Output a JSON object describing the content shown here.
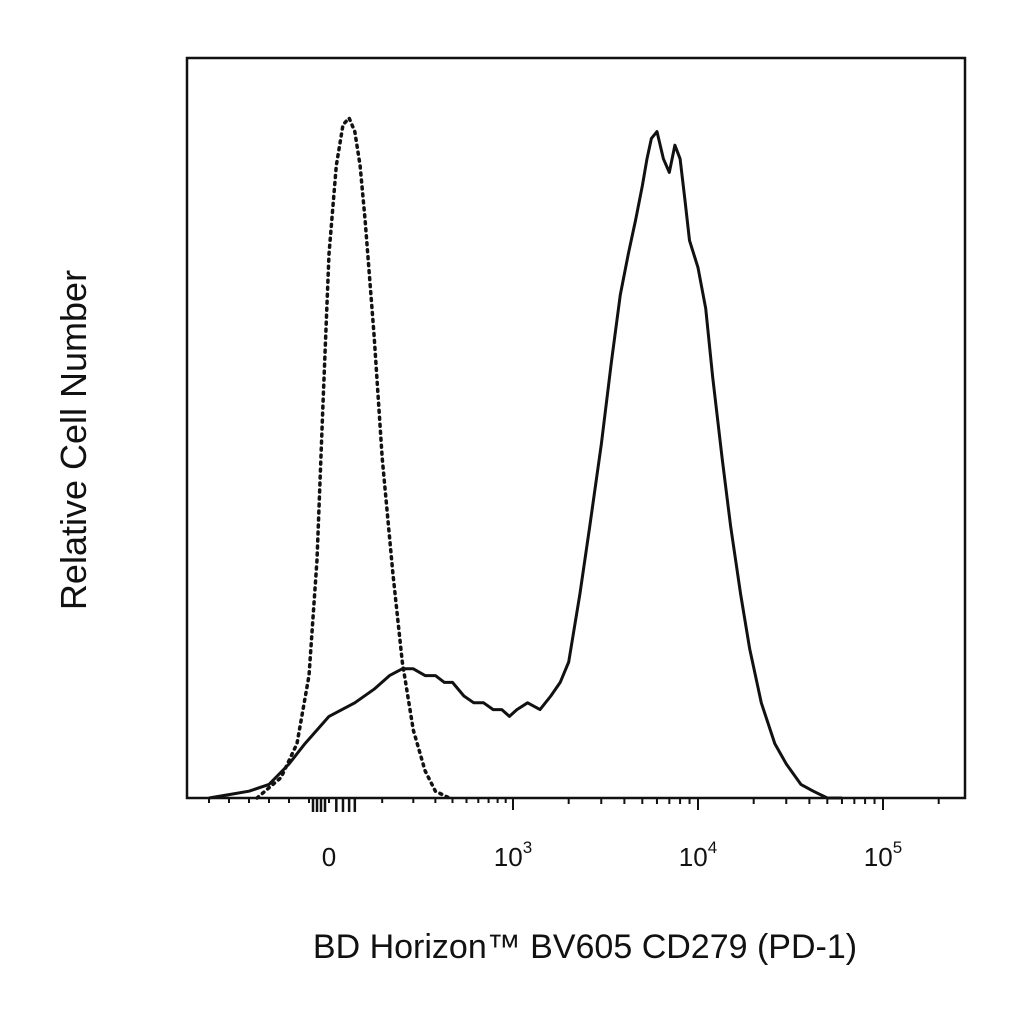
{
  "chart_data": {
    "type": "area",
    "title": "",
    "xlabel": "BD Horizon™ BV605 CD279 (PD-1)",
    "ylabel": "Relative Cell Number",
    "xscale": "biexponential",
    "xlim": [
      -300,
      200000
    ],
    "ylim": [
      0,
      1
    ],
    "grid": false,
    "legend": "none",
    "x_ticks": [
      {
        "value": 0,
        "base": "0",
        "exp": ""
      },
      {
        "value": 1000,
        "base": "10",
        "exp": "3"
      },
      {
        "value": 10000,
        "base": "10",
        "exp": "4"
      },
      {
        "value": 100000,
        "base": "10",
        "exp": "5"
      }
    ],
    "series": [
      {
        "style": "dotted",
        "color": "#111111",
        "x": [
          -180,
          -120,
          -80,
          -50,
          -30,
          -15,
          0,
          10,
          20,
          30,
          40,
          50,
          60,
          80,
          100,
          130,
          160,
          200,
          250,
          300,
          380
        ],
        "y": [
          0.0,
          0.03,
          0.08,
          0.18,
          0.35,
          0.58,
          0.8,
          0.93,
          0.99,
          1.0,
          0.98,
          0.93,
          0.85,
          0.68,
          0.5,
          0.33,
          0.2,
          0.1,
          0.04,
          0.01,
          0.0
        ]
      },
      {
        "style": "solid",
        "color": "#111111",
        "x": [
          -300,
          -250,
          -200,
          -150,
          -100,
          -60,
          -30,
          0,
          40,
          80,
          120,
          160,
          200,
          250,
          300,
          350,
          400,
          480,
          560,
          650,
          750,
          850,
          950,
          1050,
          1200,
          1400,
          1600,
          1800,
          2000,
          2300,
          2600,
          3000,
          3400,
          3800,
          4200,
          4600,
          5000,
          5300,
          5600,
          6000,
          6500,
          7000,
          7500,
          8000,
          8500,
          9000,
          10000,
          11000,
          12000,
          13500,
          15000,
          17000,
          19000,
          22000,
          26000,
          30000,
          36000,
          42000,
          50000,
          60000
        ],
        "y": [
          0.0,
          0.005,
          0.01,
          0.02,
          0.05,
          0.08,
          0.1,
          0.12,
          0.14,
          0.16,
          0.18,
          0.19,
          0.19,
          0.18,
          0.18,
          0.17,
          0.17,
          0.15,
          0.14,
          0.14,
          0.13,
          0.13,
          0.12,
          0.13,
          0.14,
          0.13,
          0.15,
          0.17,
          0.2,
          0.3,
          0.4,
          0.52,
          0.64,
          0.74,
          0.8,
          0.85,
          0.9,
          0.94,
          0.97,
          0.98,
          0.94,
          0.92,
          0.96,
          0.94,
          0.88,
          0.82,
          0.78,
          0.72,
          0.62,
          0.5,
          0.4,
          0.3,
          0.22,
          0.14,
          0.08,
          0.05,
          0.02,
          0.01,
          0.0,
          0.0
        ]
      }
    ]
  }
}
